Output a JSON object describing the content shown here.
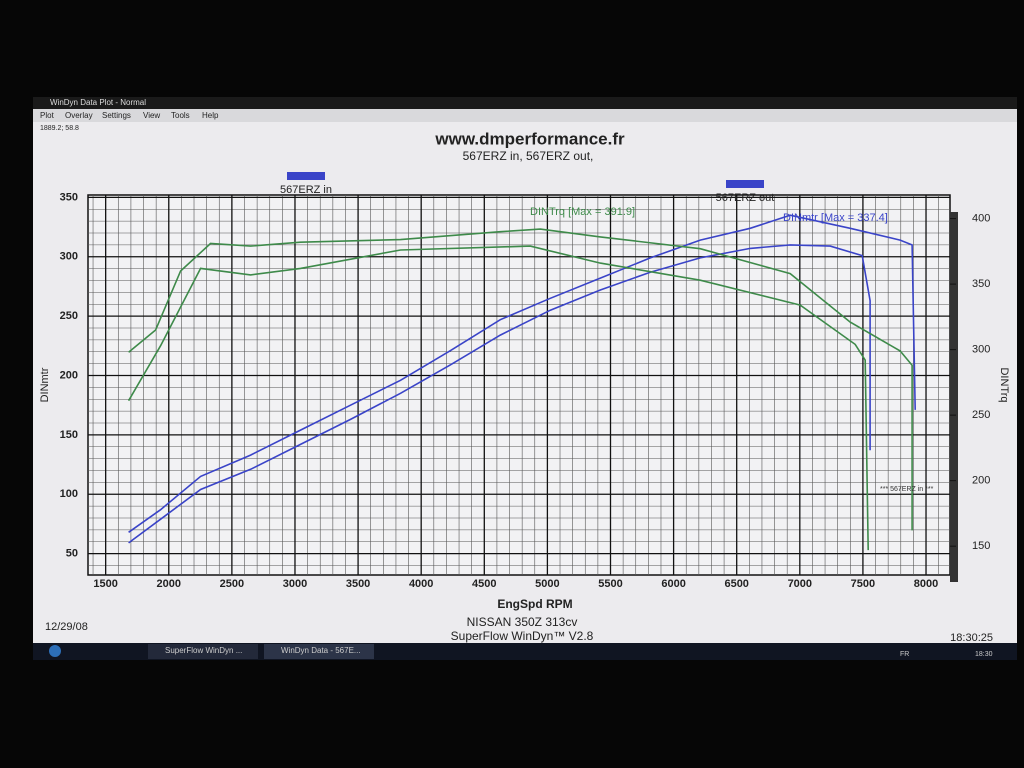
{
  "window": {
    "title": "WinDyn Data Plot - Normal",
    "menu": [
      "Plot",
      "Overlay",
      "Settings",
      "View",
      "Tools",
      "Help"
    ],
    "cursor_readout": "1889.2; 58.8"
  },
  "chart_data": {
    "type": "line",
    "title": "www.dmperformance.fr",
    "subtitle": "567ERZ in, 567ERZ out,",
    "x_label": "EngSpd RPM",
    "y_label": "DINmtr",
    "y2_label": "DINTrq",
    "xlim": [
      1360,
      8190
    ],
    "xticks": [
      1500,
      2000,
      2500,
      3000,
      3500,
      4000,
      4500,
      5000,
      5500,
      6000,
      6500,
      7000,
      7500,
      8000
    ],
    "ylim": [
      32,
      352
    ],
    "yticks": [
      50,
      100,
      150,
      200,
      250,
      300,
      350
    ],
    "y2lim": [
      128,
      418
    ],
    "y2ticks": [
      150,
      200,
      250,
      300,
      350,
      400
    ],
    "grid": true,
    "annotations": [
      "DINTrq [Max = 391.9]",
      "DINmtr [Max = 337.4]",
      "*** 567ERZ in ***"
    ],
    "series": [
      {
        "name": "567ERZ in",
        "color": "#3a44c8",
        "axis": "y",
        "x": [
          1682,
          1935,
          2252,
          2648,
          3044,
          3440,
          3836,
          4232,
          4627,
          5023,
          5419,
          5815,
          6211,
          6607,
          6924,
          7399,
          7795,
          7890,
          7914
        ],
        "values": [
          68,
          87,
          115,
          133,
          154,
          175,
          196,
          221,
          247,
          265,
          282,
          299,
          314,
          324,
          335,
          324,
          314,
          310,
          171
        ]
      },
      {
        "name": "567ERZ out",
        "color": "#3a44c8",
        "axis": "y",
        "x": [
          1682,
          1935,
          2252,
          2648,
          3044,
          3440,
          3836,
          4232,
          4627,
          5023,
          5419,
          5815,
          6211,
          6607,
          6924,
          7241,
          7494,
          7557,
          7557
        ],
        "values": [
          59,
          79,
          104,
          121,
          142,
          163,
          185,
          209,
          234,
          255,
          272,
          287,
          299,
          307,
          310,
          309,
          301,
          263,
          137
        ]
      },
      {
        "name": "567ERZ in",
        "color": "#3e8a4a",
        "axis": "y2",
        "x": [
          1682,
          1896,
          2094,
          2331,
          2648,
          3044,
          3836,
          4627,
          4944,
          5419,
          6211,
          6924,
          7399,
          7795,
          7890,
          7890
        ],
        "values": [
          298,
          315,
          360,
          381,
          379,
          382,
          384,
          390,
          392,
          386,
          377,
          358,
          321,
          299,
          288,
          162
        ]
      },
      {
        "name": "567ERZ out",
        "color": "#3e8a4a",
        "axis": "y2",
        "x": [
          1682,
          1935,
          2252,
          2648,
          3044,
          3836,
          4864,
          5419,
          6211,
          7003,
          7439,
          7518,
          7542
        ],
        "values": [
          261,
          303,
          362,
          357,
          362,
          376,
          379,
          366,
          353,
          334,
          304,
          292,
          147
        ]
      }
    ]
  },
  "footer": {
    "date": "12/29/08",
    "vehicle": "NISSAN 350Z 313cv",
    "software": "SuperFlow WinDyn™ V2.8",
    "time": "18:30:25"
  },
  "taskbar": {
    "items": [
      "SuperFlow WinDyn ...",
      "WinDyn Data - 567E..."
    ],
    "language": "FR",
    "clock": "18:30"
  }
}
